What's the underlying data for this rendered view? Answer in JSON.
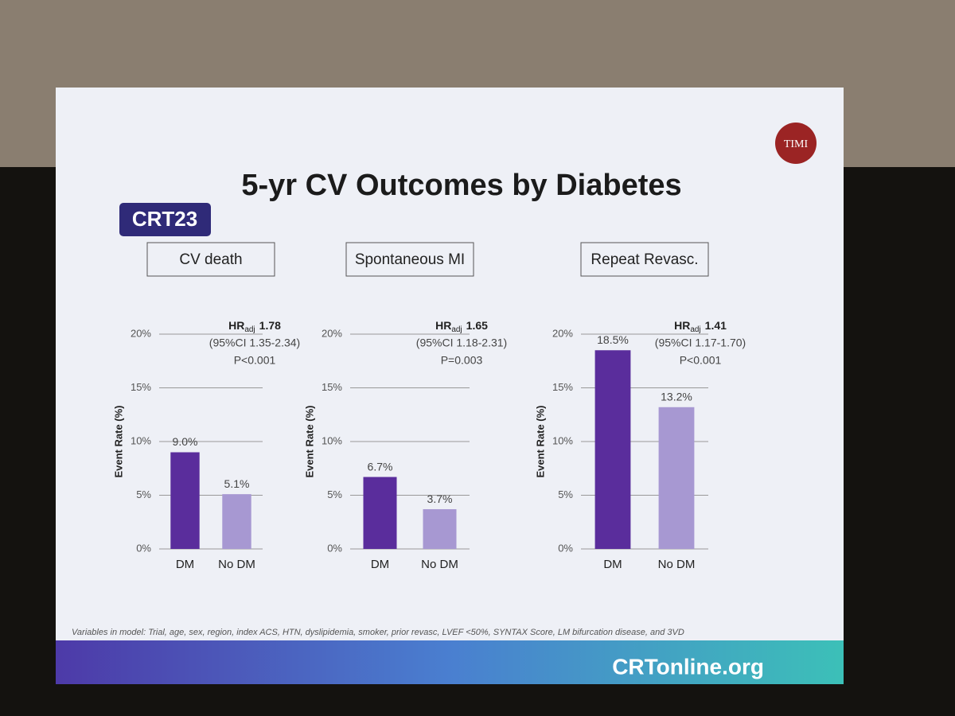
{
  "slide": {
    "logo": "CRT23",
    "title": "5-yr CV Outcomes by Diabetes",
    "badge": "TIMI",
    "footnote": "Variables in model: Trial, age, sex, region, index ACS, HTN, dyslipidemia, smoker, prior revasc, LVEF <50%, SYNTAX Score, LM bifurcation disease, and 3VD",
    "brand": "CRTonline.org"
  },
  "chart_data": [
    {
      "type": "bar",
      "title": "CV death",
      "y_label": "Event Rate (%)",
      "categories": [
        "DM",
        "No DM"
      ],
      "values": [
        9.0,
        5.1
      ],
      "value_labels": [
        "9.0%",
        "5.1%"
      ],
      "colors": [
        "#5a2d9c",
        "#a798d2"
      ],
      "ylim": [
        0,
        20
      ],
      "yticks": [
        {
          "value": 0,
          "label": "0%"
        },
        {
          "value": 5,
          "label": "5%"
        },
        {
          "value": 10,
          "label": "10%"
        },
        {
          "value": 15,
          "label": "15%"
        },
        {
          "value": 20,
          "label": "20%"
        }
      ],
      "grid": true,
      "annotation": {
        "hr": "HR",
        "hr_sub": "adj",
        "hr_value": "1.78",
        "ci": "(95%CI 1.35-2.34)",
        "p": "P<0.001"
      }
    },
    {
      "type": "bar",
      "title": "Spontaneous MI",
      "y_label": "Event Rate (%)",
      "categories": [
        "DM",
        "No DM"
      ],
      "values": [
        6.7,
        3.7
      ],
      "value_labels": [
        "6.7%",
        "3.7%"
      ],
      "colors": [
        "#5a2d9c",
        "#a798d2"
      ],
      "ylim": [
        0,
        20
      ],
      "yticks": [
        {
          "value": 0,
          "label": "0%"
        },
        {
          "value": 5,
          "label": "5%"
        },
        {
          "value": 10,
          "label": "10%"
        },
        {
          "value": 15,
          "label": "15%"
        },
        {
          "value": 20,
          "label": "20%"
        }
      ],
      "grid": true,
      "annotation": {
        "hr": "HR",
        "hr_sub": "adj",
        "hr_value": "1.65",
        "ci": "(95%CI 1.18-2.31)",
        "p": "P=0.003"
      }
    },
    {
      "type": "bar",
      "title": "Repeat Revasc.",
      "y_label": "Event Rate (%)",
      "categories": [
        "DM",
        "No DM"
      ],
      "values": [
        18.5,
        13.2
      ],
      "value_labels": [
        "18.5%",
        "13.2%"
      ],
      "colors": [
        "#5a2d9c",
        "#a798d2"
      ],
      "ylim": [
        0,
        20
      ],
      "yticks": [
        {
          "value": 0,
          "label": "0%"
        },
        {
          "value": 5,
          "label": "5%"
        },
        {
          "value": 10,
          "label": "10%"
        },
        {
          "value": 15,
          "label": "15%"
        },
        {
          "value": 20,
          "label": "20%"
        }
      ],
      "grid": true,
      "annotation": {
        "hr": "HR",
        "hr_sub": "adj",
        "hr_value": "1.41",
        "ci": "(95%CI 1.17-1.70)",
        "p": "P<0.001"
      }
    }
  ]
}
